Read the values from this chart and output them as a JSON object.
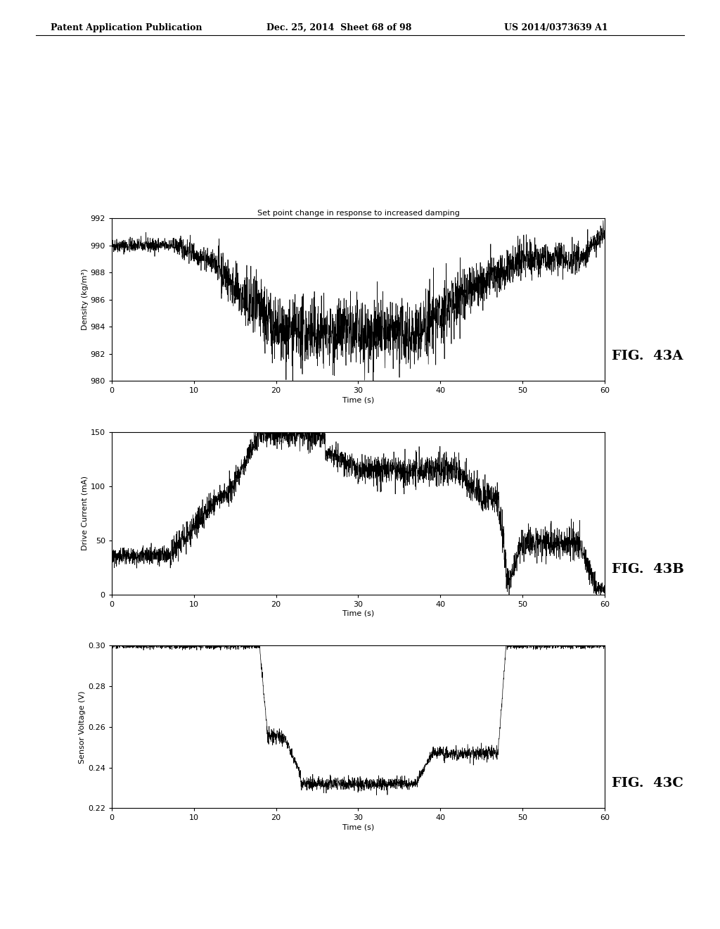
{
  "header_left": "Patent Application Publication",
  "header_mid": "Dec. 25, 2014  Sheet 68 of 98",
  "header_right": "US 2014/0373639 A1",
  "fig_title": "Set point change in response to increased damping",
  "fig_labels": [
    "FIG.  43A",
    "FIG.  43B",
    "FIG.  43C"
  ],
  "plot1": {
    "ylabel": "Density (kg/m³)",
    "xlabel": "Time (s)",
    "ylim": [
      980,
      992
    ],
    "xlim": [
      0,
      60
    ],
    "yticks": [
      980,
      982,
      984,
      986,
      988,
      990,
      992
    ],
    "xticks": [
      0,
      10,
      20,
      30,
      40,
      50,
      60
    ]
  },
  "plot2": {
    "ylabel": "Drive Current (mA)",
    "xlabel": "Time (s)",
    "ylim": [
      0,
      150
    ],
    "xlim": [
      0,
      60
    ],
    "yticks": [
      0,
      50,
      100,
      150
    ],
    "xticks": [
      0,
      10,
      20,
      30,
      40,
      50,
      60
    ]
  },
  "plot3": {
    "ylabel": "Sensor Voltage (V)",
    "xlabel": "Time (s)",
    "ylim": [
      0.22,
      0.3
    ],
    "xlim": [
      0,
      60
    ],
    "yticks": [
      0.22,
      0.24,
      0.26,
      0.28,
      0.3
    ],
    "xticks": [
      0,
      10,
      20,
      30,
      40,
      50,
      60
    ]
  },
  "line_color": "#000000",
  "bg_color": "#ffffff",
  "fig_label_fontsize": 14,
  "axis_label_fontsize": 8,
  "tick_fontsize": 8,
  "title_fontsize": 8,
  "header_fontsize": 9
}
